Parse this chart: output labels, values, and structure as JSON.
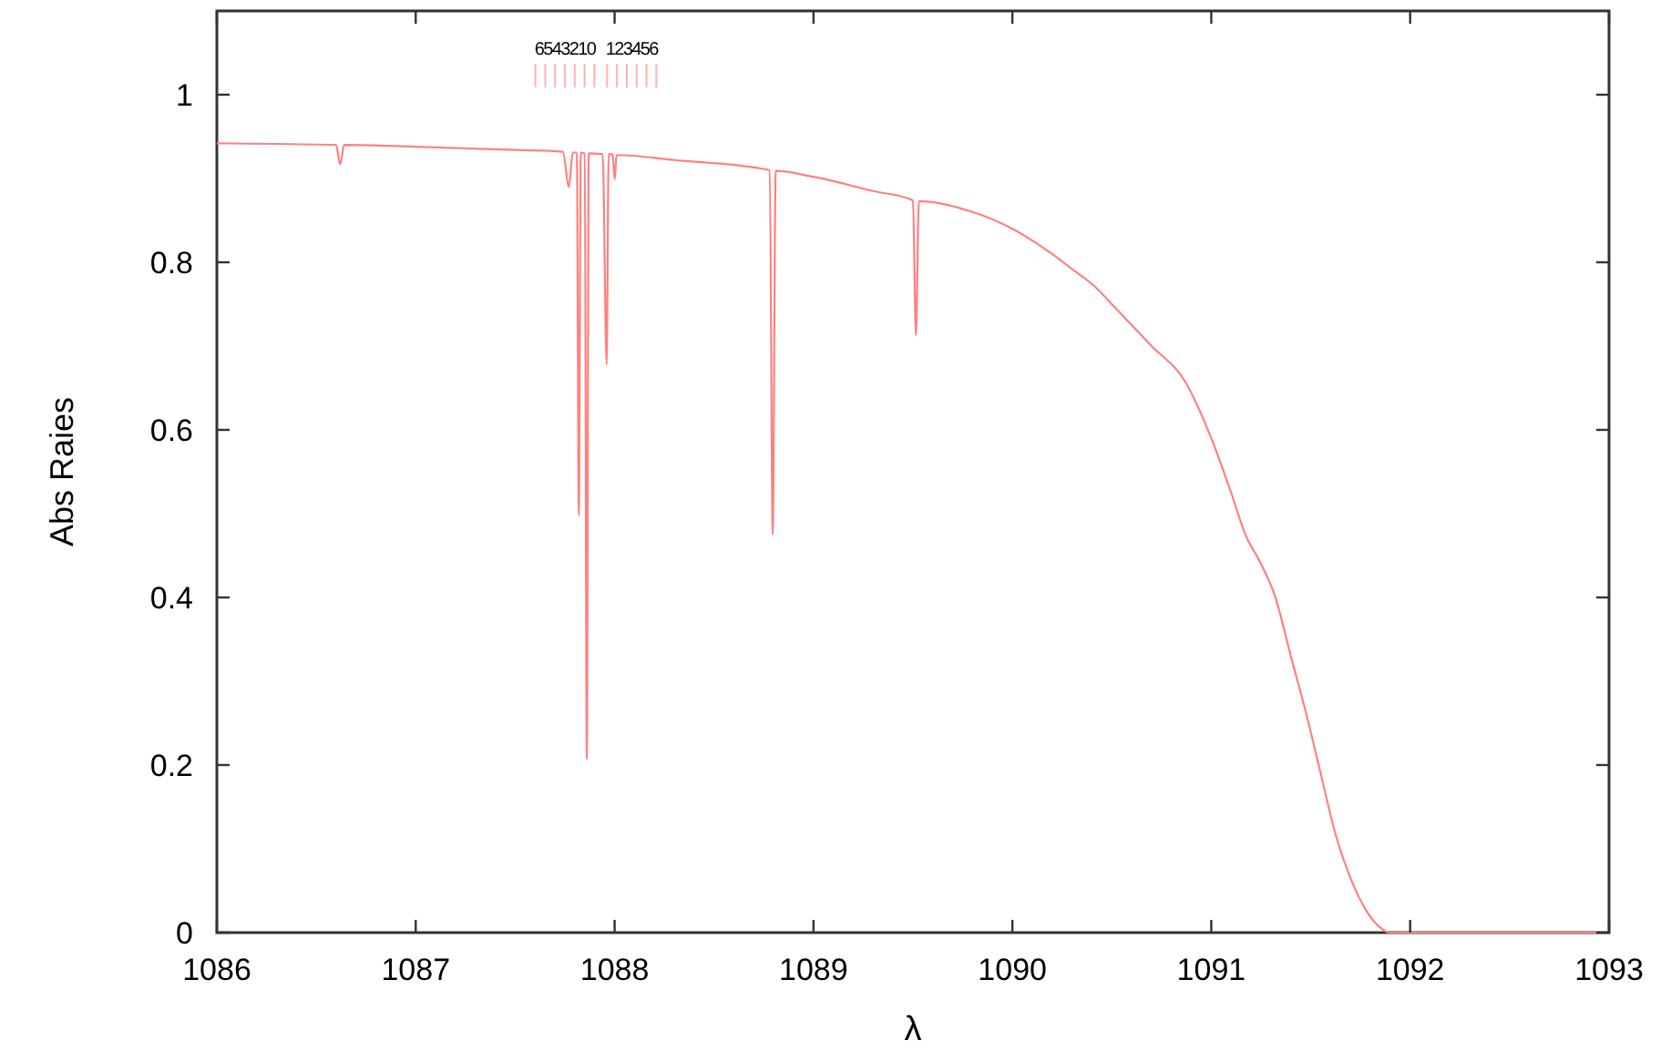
{
  "chart_data": {
    "type": "line",
    "xlabel": "λ",
    "ylabel": "Abs Raies",
    "xlim": [
      1086,
      1093
    ],
    "xticks": [
      1086,
      1087,
      1088,
      1089,
      1090,
      1091,
      1092,
      1093
    ],
    "ylim": [
      0,
      1.1
    ],
    "yticks": [
      0,
      {
        "value": 0.2,
        "label": "0.2"
      },
      {
        "value": 0.4,
        "label": "0.4"
      },
      {
        "value": 0.6,
        "label": "0.6"
      },
      {
        "value": 0.8,
        "label": "0.8"
      },
      1
    ],
    "grid": false,
    "marker": "none",
    "line_style": "solid",
    "annotations": [
      "6543210",
      "123456"
    ],
    "series": [
      {
        "color": "#ff8080",
        "x": [
          1086,
          1086.6,
          1086.62,
          1086.64,
          1087.0,
          1087.5,
          1087.74,
          1087.77,
          1087.79,
          1087.81,
          1087.82,
          1087.83,
          1087.85,
          1087.86,
          1087.87,
          1087.94,
          1087.96,
          1087.97,
          1087.99,
          1088.0,
          1088.01,
          1088.3,
          1088.78,
          1088.795,
          1088.81,
          1089.0,
          1089.3,
          1089.5,
          1089.515,
          1089.53,
          1089.8,
          1090.0,
          1090.1,
          1090.2,
          1090.3,
          1090.41,
          1090.5,
          1090.6,
          1090.7,
          1090.87,
          1091.0,
          1091.1,
          1091.17,
          1091.25,
          1091.32,
          1091.4,
          1091.48,
          1091.55,
          1091.63,
          1091.7,
          1091.78,
          1091.84,
          1091.9,
          1092.5,
          1093
        ],
        "values": [
          0.942,
          0.94,
          0.917,
          0.94,
          0.938,
          0.934,
          0.932,
          0.89,
          0.931,
          0.931,
          0.498,
          0.931,
          0.93,
          0.207,
          0.93,
          0.929,
          0.678,
          0.929,
          0.929,
          0.899,
          0.928,
          0.922,
          0.91,
          0.475,
          0.909,
          0.902,
          0.885,
          0.874,
          0.713,
          0.873,
          0.86,
          0.84,
          0.826,
          0.81,
          0.792,
          0.772,
          0.75,
          0.725,
          0.7,
          0.657,
          0.59,
          0.525,
          0.476,
          0.44,
          0.402,
          0.33,
          0.259,
          0.19,
          0.113,
          0.065,
          0.026,
          0.008,
          0,
          0,
          0
        ]
      }
    ]
  }
}
